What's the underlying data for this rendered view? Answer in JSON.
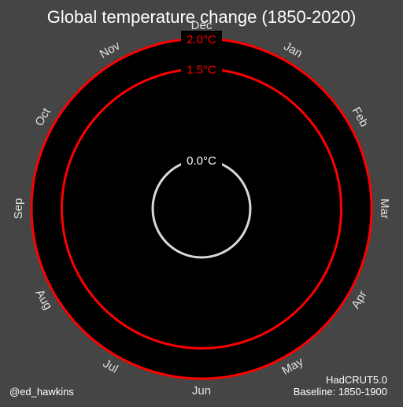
{
  "chart_data": {
    "type": "line",
    "title": "Global temperature change (1850-2020)",
    "months": [
      "Jan",
      "Feb",
      "Mar",
      "Apr",
      "May",
      "Jun",
      "Jul",
      "Aug",
      "Sep",
      "Oct",
      "Nov",
      "Dec"
    ],
    "reference_circles": [
      {
        "value": 0.0,
        "label": "0.0°C",
        "color": "#d8d8d8"
      },
      {
        "value": 1.5,
        "label": "1.5°C",
        "color": "#ff0000"
      },
      {
        "value": 2.0,
        "label": "2.0°C",
        "color": "#ff0000"
      }
    ],
    "series": [],
    "source": "HadCRUT5.0",
    "baseline": "Baseline: 1850-1900",
    "credit": "@ed_hawkins"
  },
  "colors": {
    "background": "#454545",
    "plot_area": "#000000",
    "text": "#ffffff",
    "month_labels": "#e0e0e0",
    "warning": "#ff0000"
  }
}
